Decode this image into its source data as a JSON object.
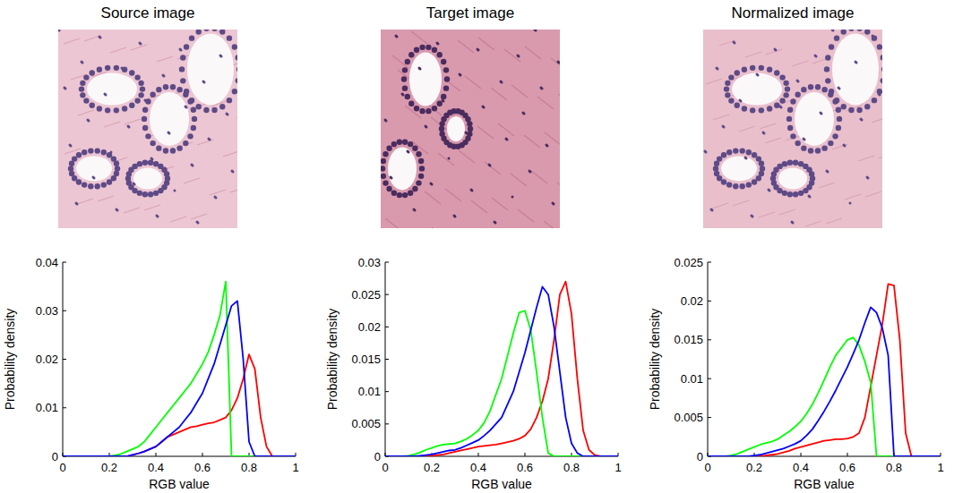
{
  "chart_data": [
    {
      "type": "line",
      "title": "Source image",
      "xlabel": "RGB value",
      "ylabel": "Probability density",
      "xlim": [
        0,
        1
      ],
      "xticks": [
        0,
        0.2,
        0.4,
        0.6,
        0.8,
        1
      ],
      "ylim": [
        0,
        0.04
      ],
      "yticks": [
        0,
        0.01,
        0.02,
        0.03,
        0.04
      ],
      "x": [
        0,
        0.025,
        0.05,
        0.075,
        0.1,
        0.125,
        0.15,
        0.175,
        0.2,
        0.225,
        0.25,
        0.275,
        0.3,
        0.325,
        0.35,
        0.375,
        0.4,
        0.425,
        0.45,
        0.475,
        0.5,
        0.525,
        0.55,
        0.575,
        0.6,
        0.625,
        0.65,
        0.675,
        0.7,
        0.725,
        0.75,
        0.775,
        0.8,
        0.825,
        0.85,
        0.875,
        0.9,
        0.925,
        0.95,
        0.975,
        1
      ],
      "series": [
        {
          "color": "#ff0000",
          "values": [
            0,
            0,
            0,
            0,
            0,
            0,
            0,
            0,
            0,
            0,
            0,
            0,
            0.0003,
            0.0006,
            0.001,
            0.0015,
            0.002,
            0.003,
            0.004,
            0.0045,
            0.005,
            0.0055,
            0.006,
            0.0062,
            0.0065,
            0.0068,
            0.007,
            0.0075,
            0.008,
            0.0095,
            0.012,
            0.016,
            0.021,
            0.018,
            0.008,
            0.002,
            0,
            0,
            0,
            0,
            0
          ]
        },
        {
          "color": "#00ff00",
          "values": [
            0,
            0,
            0,
            0,
            0,
            0,
            0,
            0,
            0,
            0.0002,
            0.0005,
            0.001,
            0.0015,
            0.002,
            0.003,
            0.0045,
            0.006,
            0.0075,
            0.009,
            0.0105,
            0.012,
            0.0135,
            0.015,
            0.017,
            0.019,
            0.0215,
            0.025,
            0.029,
            0.036,
            0,
            0,
            0,
            0,
            0,
            0,
            0,
            0,
            0,
            0,
            0,
            0
          ]
        },
        {
          "color": "#0000ff",
          "values": [
            0,
            0,
            0,
            0,
            0,
            0,
            0,
            0,
            0,
            0,
            0,
            0,
            0.0003,
            0.0006,
            0.001,
            0.0015,
            0.002,
            0.003,
            0.004,
            0.005,
            0.006,
            0.0075,
            0.009,
            0.011,
            0.013,
            0.016,
            0.019,
            0.023,
            0.027,
            0.031,
            0.032,
            0.02,
            0.003,
            0,
            0,
            0,
            0,
            0,
            0,
            0,
            0
          ]
        }
      ]
    },
    {
      "type": "line",
      "title": "Target image",
      "xlabel": "RGB value",
      "ylabel": "Probability density",
      "xlim": [
        0,
        1
      ],
      "xticks": [
        0,
        0.2,
        0.4,
        0.6,
        0.8,
        1
      ],
      "ylim": [
        0,
        0.03
      ],
      "yticks": [
        0,
        0.005,
        0.01,
        0.015,
        0.02,
        0.025,
        0.03
      ],
      "x": [
        0,
        0.025,
        0.05,
        0.075,
        0.1,
        0.125,
        0.15,
        0.175,
        0.2,
        0.225,
        0.25,
        0.275,
        0.3,
        0.325,
        0.35,
        0.375,
        0.4,
        0.425,
        0.45,
        0.475,
        0.5,
        0.525,
        0.55,
        0.575,
        0.6,
        0.625,
        0.65,
        0.675,
        0.7,
        0.725,
        0.75,
        0.775,
        0.8,
        0.825,
        0.85,
        0.875,
        0.9,
        0.925,
        0.95,
        0.975,
        1
      ],
      "series": [
        {
          "color": "#ff0000",
          "values": [
            0,
            0,
            0,
            0,
            0,
            0,
            0,
            0,
            0.0001,
            0.0002,
            0.0003,
            0.0005,
            0.0007,
            0.0009,
            0.0011,
            0.0013,
            0.0015,
            0.0016,
            0.0017,
            0.0018,
            0.002,
            0.0022,
            0.0024,
            0.0027,
            0.0032,
            0.0042,
            0.006,
            0.0085,
            0.012,
            0.018,
            0.025,
            0.027,
            0.022,
            0.012,
            0.004,
            0.001,
            0.0002,
            0,
            0,
            0,
            0
          ]
        },
        {
          "color": "#00ff00",
          "values": [
            0,
            0,
            0,
            0,
            0.0001,
            0.0003,
            0.0006,
            0.001,
            0.0013,
            0.0016,
            0.0018,
            0.0019,
            0.002,
            0.0023,
            0.0027,
            0.0033,
            0.004,
            0.0052,
            0.007,
            0.0095,
            0.012,
            0.0155,
            0.019,
            0.0222,
            0.0225,
            0.0195,
            0.013,
            0.006,
            0.0005,
            0,
            0,
            0,
            0,
            0,
            0,
            0,
            0,
            0,
            0,
            0,
            0
          ]
        },
        {
          "color": "#0000ff",
          "values": [
            0,
            0,
            0,
            0,
            0,
            0,
            0.0001,
            0.0002,
            0.0003,
            0.0005,
            0.0007,
            0.0009,
            0.001,
            0.0013,
            0.0017,
            0.0021,
            0.0025,
            0.0032,
            0.004,
            0.005,
            0.006,
            0.008,
            0.01,
            0.013,
            0.016,
            0.0195,
            0.023,
            0.0262,
            0.025,
            0.02,
            0.013,
            0.006,
            0.002,
            0.0005,
            0,
            0,
            0,
            0,
            0,
            0,
            0
          ]
        }
      ]
    },
    {
      "type": "line",
      "title": "Normalized image",
      "xlabel": "RGB value",
      "ylabel": "Probability density",
      "xlim": [
        0,
        1
      ],
      "xticks": [
        0,
        0.2,
        0.4,
        0.6,
        0.8,
        1
      ],
      "ylim": [
        0,
        0.025
      ],
      "yticks": [
        0,
        0.005,
        0.01,
        0.015,
        0.02,
        0.025
      ],
      "x": [
        0,
        0.025,
        0.05,
        0.075,
        0.1,
        0.125,
        0.15,
        0.175,
        0.2,
        0.225,
        0.25,
        0.275,
        0.3,
        0.325,
        0.35,
        0.375,
        0.4,
        0.425,
        0.45,
        0.475,
        0.5,
        0.525,
        0.55,
        0.575,
        0.6,
        0.625,
        0.65,
        0.675,
        0.7,
        0.725,
        0.75,
        0.775,
        0.8,
        0.825,
        0.85,
        0.875,
        0.9,
        0.925,
        0.95,
        0.975,
        1
      ],
      "series": [
        {
          "color": "#ff0000",
          "values": [
            0,
            0,
            0,
            0,
            0,
            0,
            0,
            0,
            0,
            0,
            0.0001,
            0.0002,
            0.0003,
            0.0005,
            0.0007,
            0.001,
            0.0012,
            0.0014,
            0.0016,
            0.0018,
            0.002,
            0.0021,
            0.0022,
            0.0022,
            0.0023,
            0.0025,
            0.003,
            0.005,
            0.009,
            0.013,
            0.017,
            0.0222,
            0.022,
            0.015,
            0.003,
            0,
            0,
            0,
            0,
            0,
            0
          ]
        },
        {
          "color": "#00ff00",
          "values": [
            0,
            0,
            0,
            0,
            0.0001,
            0.0003,
            0.0006,
            0.0009,
            0.0012,
            0.0015,
            0.0017,
            0.0019,
            0.0022,
            0.0027,
            0.0032,
            0.0038,
            0.0045,
            0.0055,
            0.0067,
            0.0082,
            0.0098,
            0.0115,
            0.013,
            0.014,
            0.015,
            0.0153,
            0.0143,
            0.0122,
            0.0095,
            0,
            0,
            0,
            0,
            0,
            0,
            0,
            0,
            0,
            0,
            0,
            0
          ]
        },
        {
          "color": "#0000ff",
          "values": [
            0,
            0,
            0,
            0,
            0,
            0,
            0,
            0,
            0.0001,
            0.0002,
            0.0004,
            0.0006,
            0.0008,
            0.001,
            0.0013,
            0.0016,
            0.002,
            0.0027,
            0.0035,
            0.0046,
            0.0058,
            0.0071,
            0.0085,
            0.01,
            0.0115,
            0.0132,
            0.015,
            0.0172,
            0.0192,
            0.0185,
            0.0165,
            0.013,
            0,
            0,
            0,
            0,
            0,
            0,
            0,
            0,
            0
          ]
        }
      ]
    }
  ]
}
